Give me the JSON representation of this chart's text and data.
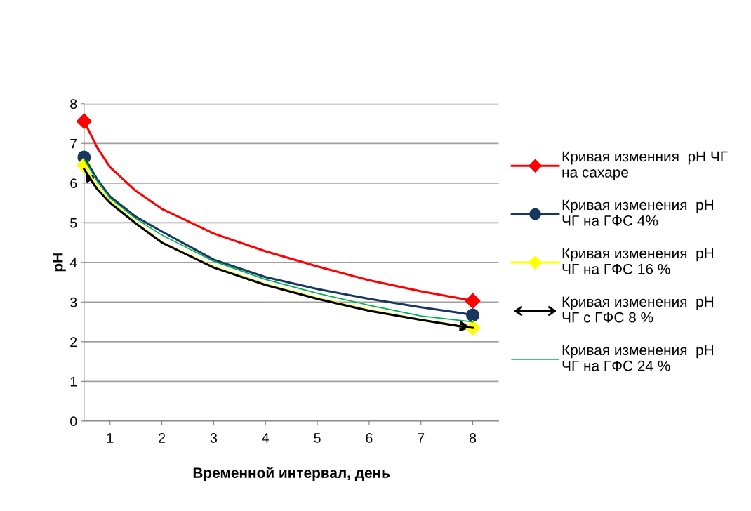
{
  "chart_data": {
    "type": "line",
    "xlabel": "Временной интервал, день",
    "ylabel": "pH",
    "xlim": [
      0.5,
      8.5
    ],
    "xticks": [
      1,
      2,
      3,
      4,
      5,
      6,
      7,
      8
    ],
    "ylim": [
      0,
      8
    ],
    "yticks": [
      0,
      1,
      2,
      3,
      4,
      5,
      6,
      7,
      8
    ],
    "grid": "y",
    "legend": "right",
    "line_style": "solid",
    "x": [
      0.5,
      0.75,
      1,
      1.5,
      2,
      3,
      4,
      5,
      6,
      7,
      7.8,
      8
    ],
    "series": [
      {
        "name": "Кривая изменния  рН ЧГ на сахаре",
        "type": "scatter",
        "color": "#ff0000",
        "marker": "diamond",
        "values": [
          7.56,
          null,
          null,
          null,
          null,
          null,
          null,
          null,
          null,
          null,
          null,
          3.03
        ]
      },
      {
        "name": "Кривая изменения  рН ЧГ на ГФС 4%",
        "type": "scatter",
        "color": "#17375e",
        "marker": "circle",
        "values": [
          6.65,
          null,
          null,
          null,
          null,
          null,
          null,
          null,
          null,
          null,
          null,
          2.67
        ]
      },
      {
        "name": "Кривая изменения  рН ЧГ на ГФС 16 %",
        "type": "scatter",
        "color": "#ffff00",
        "marker": "diamond",
        "values": [
          6.45,
          null,
          null,
          null,
          null,
          null,
          null,
          null,
          null,
          null,
          null,
          2.35
        ]
      },
      {
        "color": "#ff0000",
        "marker": "none",
        "values": [
          7.56,
          6.9,
          6.4,
          5.8,
          5.35,
          4.73,
          4.28,
          3.9,
          3.55,
          3.27,
          3.08,
          3.03
        ]
      },
      {
        "color": "#17375e",
        "marker": "none",
        "values": [
          6.65,
          6.1,
          5.66,
          5.15,
          4.78,
          4.07,
          3.63,
          3.33,
          3.08,
          2.87,
          2.72,
          2.67
        ]
      },
      {
        "color": "#ffff00",
        "marker": "none",
        "values": [
          6.45,
          5.9,
          5.54,
          5.0,
          4.51,
          3.89,
          3.45,
          3.1,
          2.8,
          2.55,
          2.38,
          2.35
        ]
      },
      {
        "name": "Кривая изменения  рН ЧГ с ГФС 8 %",
        "color": "#000000",
        "marker": "none",
        "values": [
          6.35,
          5.85,
          5.5,
          4.98,
          4.5,
          3.87,
          3.43,
          3.08,
          2.78,
          2.55,
          2.38,
          2.35
        ]
      },
      {
        "name": "Кривая изменения  рН ЧГ на ГФС 24 %",
        "color": "#00b050",
        "marker": "none",
        "values": [
          6.6,
          6.05,
          5.62,
          5.1,
          4.69,
          4.03,
          3.57,
          3.22,
          2.92,
          2.65,
          2.53,
          2.5
        ]
      }
    ]
  }
}
